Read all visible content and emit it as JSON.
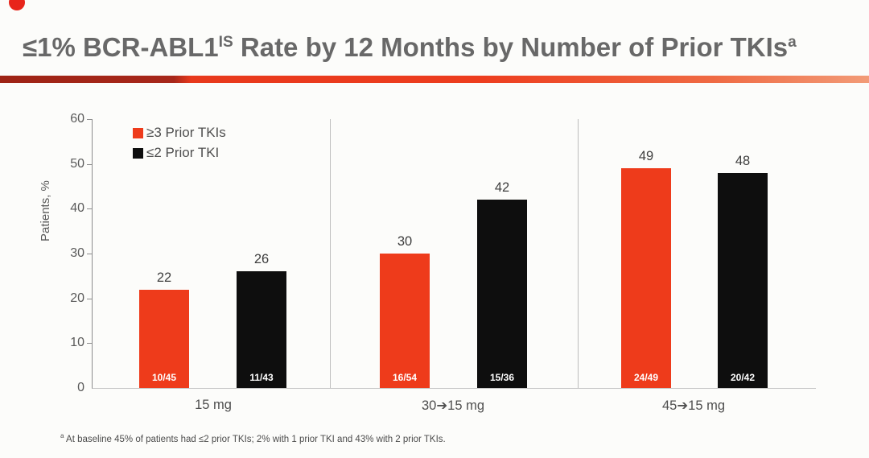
{
  "slide": {
    "title_main": "≤1% BCR-ABL1",
    "title_sup": "IS",
    "title_rest": " Rate by 12 Months by Number of Prior TKIs",
    "title_marker": "a",
    "footnote_marker": "a",
    "footnote_text": " At baseline 45% of patients had ≤2 prior TKIs; 2% with 1 prior TKI and 43% with 2 prior TKIs.",
    "accent_red": "#ee3b1b",
    "accent_dark_red": "#a7271a",
    "title_color": "#686868"
  },
  "chart_data": {
    "type": "bar",
    "title": "≤1% BCR-ABL1 IS Rate by 12 Months by Number of Prior TKIs",
    "xlabel": "",
    "ylabel": "Patients, %",
    "ylim": [
      0,
      60
    ],
    "yticks": [
      0,
      10,
      20,
      30,
      40,
      50,
      60
    ],
    "grid": false,
    "legend_position": "top-left",
    "categories": [
      "15 mg",
      "30➔15 mg",
      "45➔15 mg"
    ],
    "series": [
      {
        "name": "≥3 Prior TKIs",
        "color": "#ee3b1b",
        "values": [
          22,
          30,
          49
        ],
        "bar_labels": [
          "10/45",
          "16/54",
          "24/49"
        ]
      },
      {
        "name": "≤2 Prior TKI",
        "color": "#0e0e0e",
        "values": [
          26,
          42,
          48
        ],
        "bar_labels": [
          "11/43",
          "15/36",
          "20/42"
        ]
      }
    ]
  }
}
